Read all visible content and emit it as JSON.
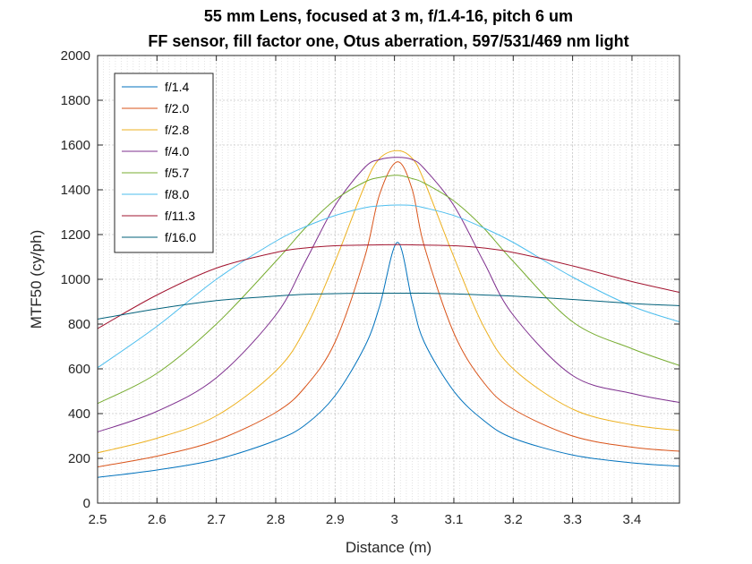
{
  "chart_data": {
    "type": "line",
    "title_lines": [
      "55 mm Lens, focused at 3 m, f/1.4-16, pitch 6 um",
      "FF sensor, fill factor one, Otus aberration, 597/531/469 nm light"
    ],
    "xlabel": "Distance (m)",
    "ylabel": "MTF50 (cy/ph)",
    "xlim": [
      2.5,
      3.48
    ],
    "ylim": [
      0,
      2000
    ],
    "xticks": [
      2.5,
      2.6,
      2.7,
      2.8,
      2.9,
      3,
      3.1,
      3.2,
      3.3,
      3.4
    ],
    "xtick_labels": [
      "2.5",
      "2.6",
      "2.7",
      "2.8",
      "2.9",
      "3",
      "3.1",
      "3.2",
      "3.3",
      "3.4"
    ],
    "yticks": [
      0,
      200,
      400,
      600,
      800,
      1000,
      1200,
      1400,
      1600,
      1800,
      2000
    ],
    "ytick_labels": [
      "0",
      "200",
      "400",
      "600",
      "800",
      "1000",
      "1200",
      "1400",
      "1600",
      "1800",
      "2000"
    ],
    "grid": true,
    "minor_grid_x": true,
    "legend_position": "top-left",
    "x": [
      2.5,
      2.6,
      2.7,
      2.8,
      2.85,
      2.9,
      2.95,
      2.975,
      3.005,
      3.03,
      3.05,
      3.1,
      3.15,
      3.2,
      3.3,
      3.4,
      3.48
    ],
    "series": [
      {
        "name": "f/1.4",
        "color": "#0072BD",
        "values": [
          115,
          148,
          195,
          280,
          350,
          480,
          700,
          880,
          1165,
          900,
          720,
          500,
          370,
          290,
          215,
          180,
          165
        ]
      },
      {
        "name": "f/2.0",
        "color": "#D95319",
        "values": [
          162,
          210,
          280,
          405,
          520,
          720,
          1100,
          1380,
          1525,
          1400,
          1150,
          760,
          540,
          420,
          300,
          250,
          232
        ]
      },
      {
        "name": "f/2.8",
        "color": "#EDB120",
        "values": [
          225,
          290,
          390,
          590,
          780,
          1080,
          1420,
          1540,
          1575,
          1540,
          1440,
          1100,
          790,
          600,
          420,
          350,
          325
        ]
      },
      {
        "name": "f/4.0",
        "color": "#7E2F8E",
        "values": [
          318,
          410,
          560,
          840,
          1080,
          1330,
          1500,
          1535,
          1545,
          1535,
          1495,
          1330,
          1080,
          840,
          570,
          490,
          450
        ]
      },
      {
        "name": "f/5.7",
        "color": "#77AC30",
        "values": [
          445,
          580,
          800,
          1080,
          1230,
          1355,
          1435,
          1455,
          1465,
          1450,
          1430,
          1350,
          1230,
          1080,
          810,
          690,
          615
        ]
      },
      {
        "name": "f/8.0",
        "color": "#4DBEEE",
        "values": [
          605,
          790,
          1000,
          1170,
          1235,
          1285,
          1320,
          1328,
          1332,
          1330,
          1320,
          1285,
          1230,
          1165,
          1010,
          880,
          810
        ]
      },
      {
        "name": "f/11.3",
        "color": "#A2142F",
        "values": [
          780,
          930,
          1050,
          1120,
          1140,
          1150,
          1153,
          1154,
          1155,
          1154,
          1153,
          1150,
          1140,
          1120,
          1060,
          990,
          942
        ]
      },
      {
        "name": "f/16.0",
        "color": "#00607A",
        "values": [
          822,
          868,
          905,
          925,
          933,
          936,
          938,
          938,
          938,
          938,
          938,
          935,
          930,
          925,
          910,
          892,
          882
        ]
      }
    ]
  }
}
